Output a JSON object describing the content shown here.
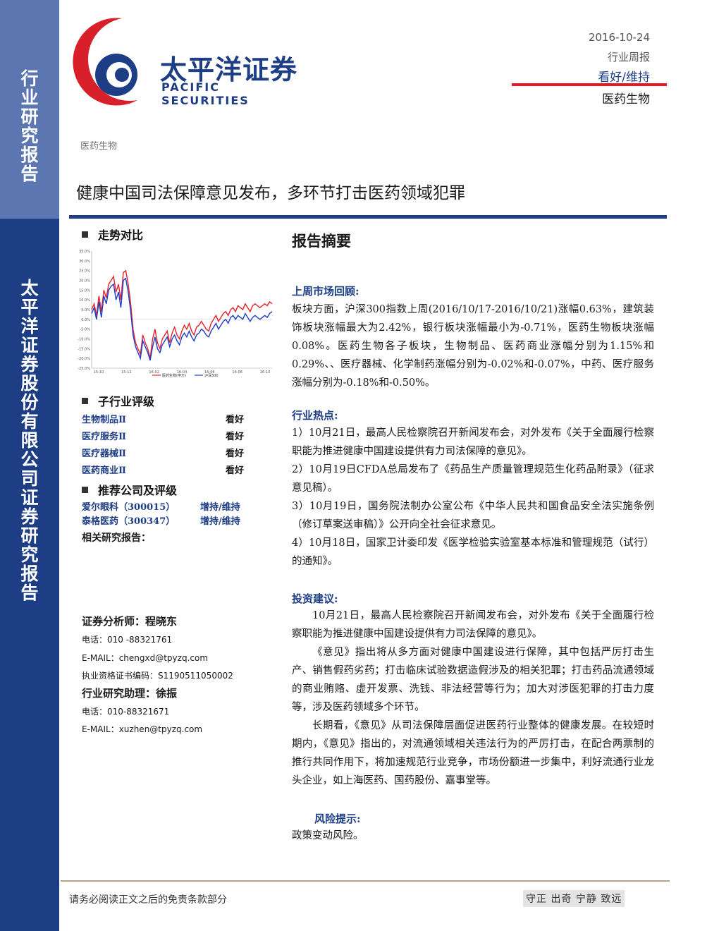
{
  "sidebar": {
    "top_text": [
      "行",
      "业",
      "研",
      "究",
      "报",
      "告"
    ],
    "bottom_text": [
      "太",
      "平",
      "洋",
      "证",
      "券",
      "股",
      "份",
      "有",
      "限",
      "公",
      "司",
      "证",
      "券",
      "研",
      "究",
      "报",
      "告"
    ]
  },
  "header": {
    "logo_cn": "太平洋证券",
    "logo_en": "PACIFIC SECURITIES",
    "date": "2016-10-24",
    "report_type": "行业周报",
    "rating": "看好/维持",
    "sector": "医药生物"
  },
  "breadcrumb": "医药生物",
  "title": "健康中国司法保障意见发布，多环节打击医药领域犯罪",
  "left": {
    "trend_heading": "走势对比",
    "sub_rating_heading": "子行业评级",
    "sub_ratings": [
      {
        "name": "生物制品Ⅱ",
        "rating": "看好"
      },
      {
        "name": "医疗服务Ⅱ",
        "rating": "看好"
      },
      {
        "name": "医疗器械Ⅱ",
        "rating": "看好"
      },
      {
        "name": "医药商业Ⅱ",
        "rating": "看好"
      }
    ],
    "company_heading": "推荐公司及评级",
    "companies": [
      {
        "name": "爱尔眼科（300015）",
        "rating": "增持/维持"
      },
      {
        "name": "泰格医药（300347）",
        "rating": "增持/维持"
      }
    ],
    "related_label": "相关研究报告：",
    "analyst_label": "证券分析师：程晓东",
    "analyst_phone": "电话：010 -88321761",
    "analyst_email": "E-MAIL：chengxd@tpyzq.com",
    "analyst_cert": "执业资格证书编码：S1190511050002",
    "assistant_label": "行业研究助理：徐振",
    "assistant_phone": "电话：010-88321671",
    "assistant_email": "E-MAIL：xuzhen@tpyzq.com"
  },
  "chart_data": {
    "type": "line",
    "y_ticks": [
      "35.0%",
      "30.0%",
      "25.0%",
      "20.0%",
      "15.0%",
      "10.0%",
      "5.0%",
      "0.0%",
      "-5.0%",
      "-10.0%",
      "-15.0%",
      "-20.0%",
      "-25.0%"
    ],
    "ylim": [
      -25,
      35
    ],
    "x_ticks": [
      "15-10",
      "15-12",
      "16-02",
      "16-04",
      "16-06",
      "16-08",
      "16-10"
    ],
    "series": [
      {
        "name": "医药生物(申万)",
        "color": "#e8202a",
        "values": [
          5,
          8,
          2,
          12,
          4,
          15,
          11,
          18,
          20,
          22,
          14,
          18,
          10,
          24,
          25,
          18,
          8,
          -5,
          -12,
          -15,
          -18,
          -8,
          -12,
          -15,
          -20,
          -10,
          -5,
          -12,
          -15,
          -10,
          -8,
          -6,
          -12,
          -7,
          -4,
          -8,
          -10,
          -6,
          -3,
          -5,
          -2,
          -6,
          -8,
          -4,
          -3,
          -1,
          -3,
          -5,
          -6,
          -2,
          0,
          2,
          -1,
          1,
          3,
          4,
          2,
          5,
          6,
          4,
          7,
          6,
          5,
          8,
          6,
          4,
          7,
          8,
          7,
          6,
          7,
          8,
          7,
          9,
          8
        ]
      },
      {
        "name": "沪深300",
        "color": "#1d3dcc",
        "values": [
          3,
          6,
          0,
          9,
          1,
          12,
          8,
          15,
          17,
          18,
          10,
          14,
          6,
          20,
          21,
          14,
          4,
          -8,
          -14,
          -17,
          -20,
          -11,
          -14,
          -17,
          -21,
          -14,
          -9,
          -15,
          -17,
          -13,
          -11,
          -9,
          -14,
          -10,
          -8,
          -11,
          -13,
          -9,
          -7,
          -9,
          -6,
          -9,
          -11,
          -8,
          -7,
          -5,
          -6,
          -8,
          -9,
          -6,
          -4,
          -2,
          -5,
          -3,
          -1,
          0,
          -2,
          1,
          2,
          0,
          2,
          1,
          0,
          3,
          1,
          -1,
          1,
          2,
          1,
          0,
          1,
          2,
          1,
          3,
          4
        ]
      }
    ]
  },
  "main": {
    "abstract_title": "报告摘要",
    "market_heading": "上周市场回顾:",
    "market_text": "板块方面，沪深300指数上周(2016/10/17-2016/10/21)涨幅0.63%，建筑装饰板块涨幅最大为2.42%，银行板块涨幅最小为-0.71%，医药生物板块涨幅0.08%。医药生物各子板块，生物制品、医药商业涨幅分别为1.15%和0.29%、、医疗器械、化学制药涨幅分别为-0.02%和-0.07%，中药、医疗服务涨幅分别为-0.18%和-0.50%。",
    "hot_heading": "行业热点:",
    "hot_items": [
      "1）10月21日，最高人民检察院召开新闻发布会，对外发布《关于全面履行检察职能为推进健康中国建设提供有力司法保障的意见》。",
      "2）10月19日CFDA总局发布了《药品生产质量管理规范生化药品附录》（征求意见稿）。",
      "3）10月19日，国务院法制办公室公布《中华人民共和国食品安全法实施条例（修订草案送审稿）》公开向全社会征求意见。",
      "4）10月18日，国家卫计委印发《医学检验实验室基本标准和管理规范（试行）的通知》。"
    ],
    "invest_heading": "投资建议:",
    "invest_paras": [
      "10月21日，最高人民检察院召开新闻发布会，对外发布《关于全面履行检察职能为推进健康中国建设提供有力司法保障的意见》。",
      "《意见》指出将从多方面对健康中国建设进行保障，其中包括严厉打击生产、销售假药劣药；打击临床试验数据造假涉及的相关犯罪；打击药品流通领域的商业贿赂、虚开发票、洗钱、非法经营等行为；加大对涉医犯罪的打击力度等，涉及医药领域多个环节。",
      "长期看，《意见》从司法保障层面促进医药行业整体的健康发展。在较短时期内，《意见》指出的，对流通领域相关违法行为的严厉打击，在配合两票制的推行共同作用下，将加速规范行业竞争，市场份额进一步集中，利好流通行业龙头企业，如上海医药、国药股份、嘉事堂等。"
    ],
    "risk_heading": "风险提示:",
    "risk_text": "政策变动风险。"
  },
  "footer": {
    "left": "请务必阅读正文之后的免责条款部分",
    "right": "守正 出奇 宁静 致远"
  },
  "colors": {
    "brand_blue": "#1d3d85",
    "sidebar_light": "#5b76b0",
    "accent_red": "#d8202a"
  }
}
